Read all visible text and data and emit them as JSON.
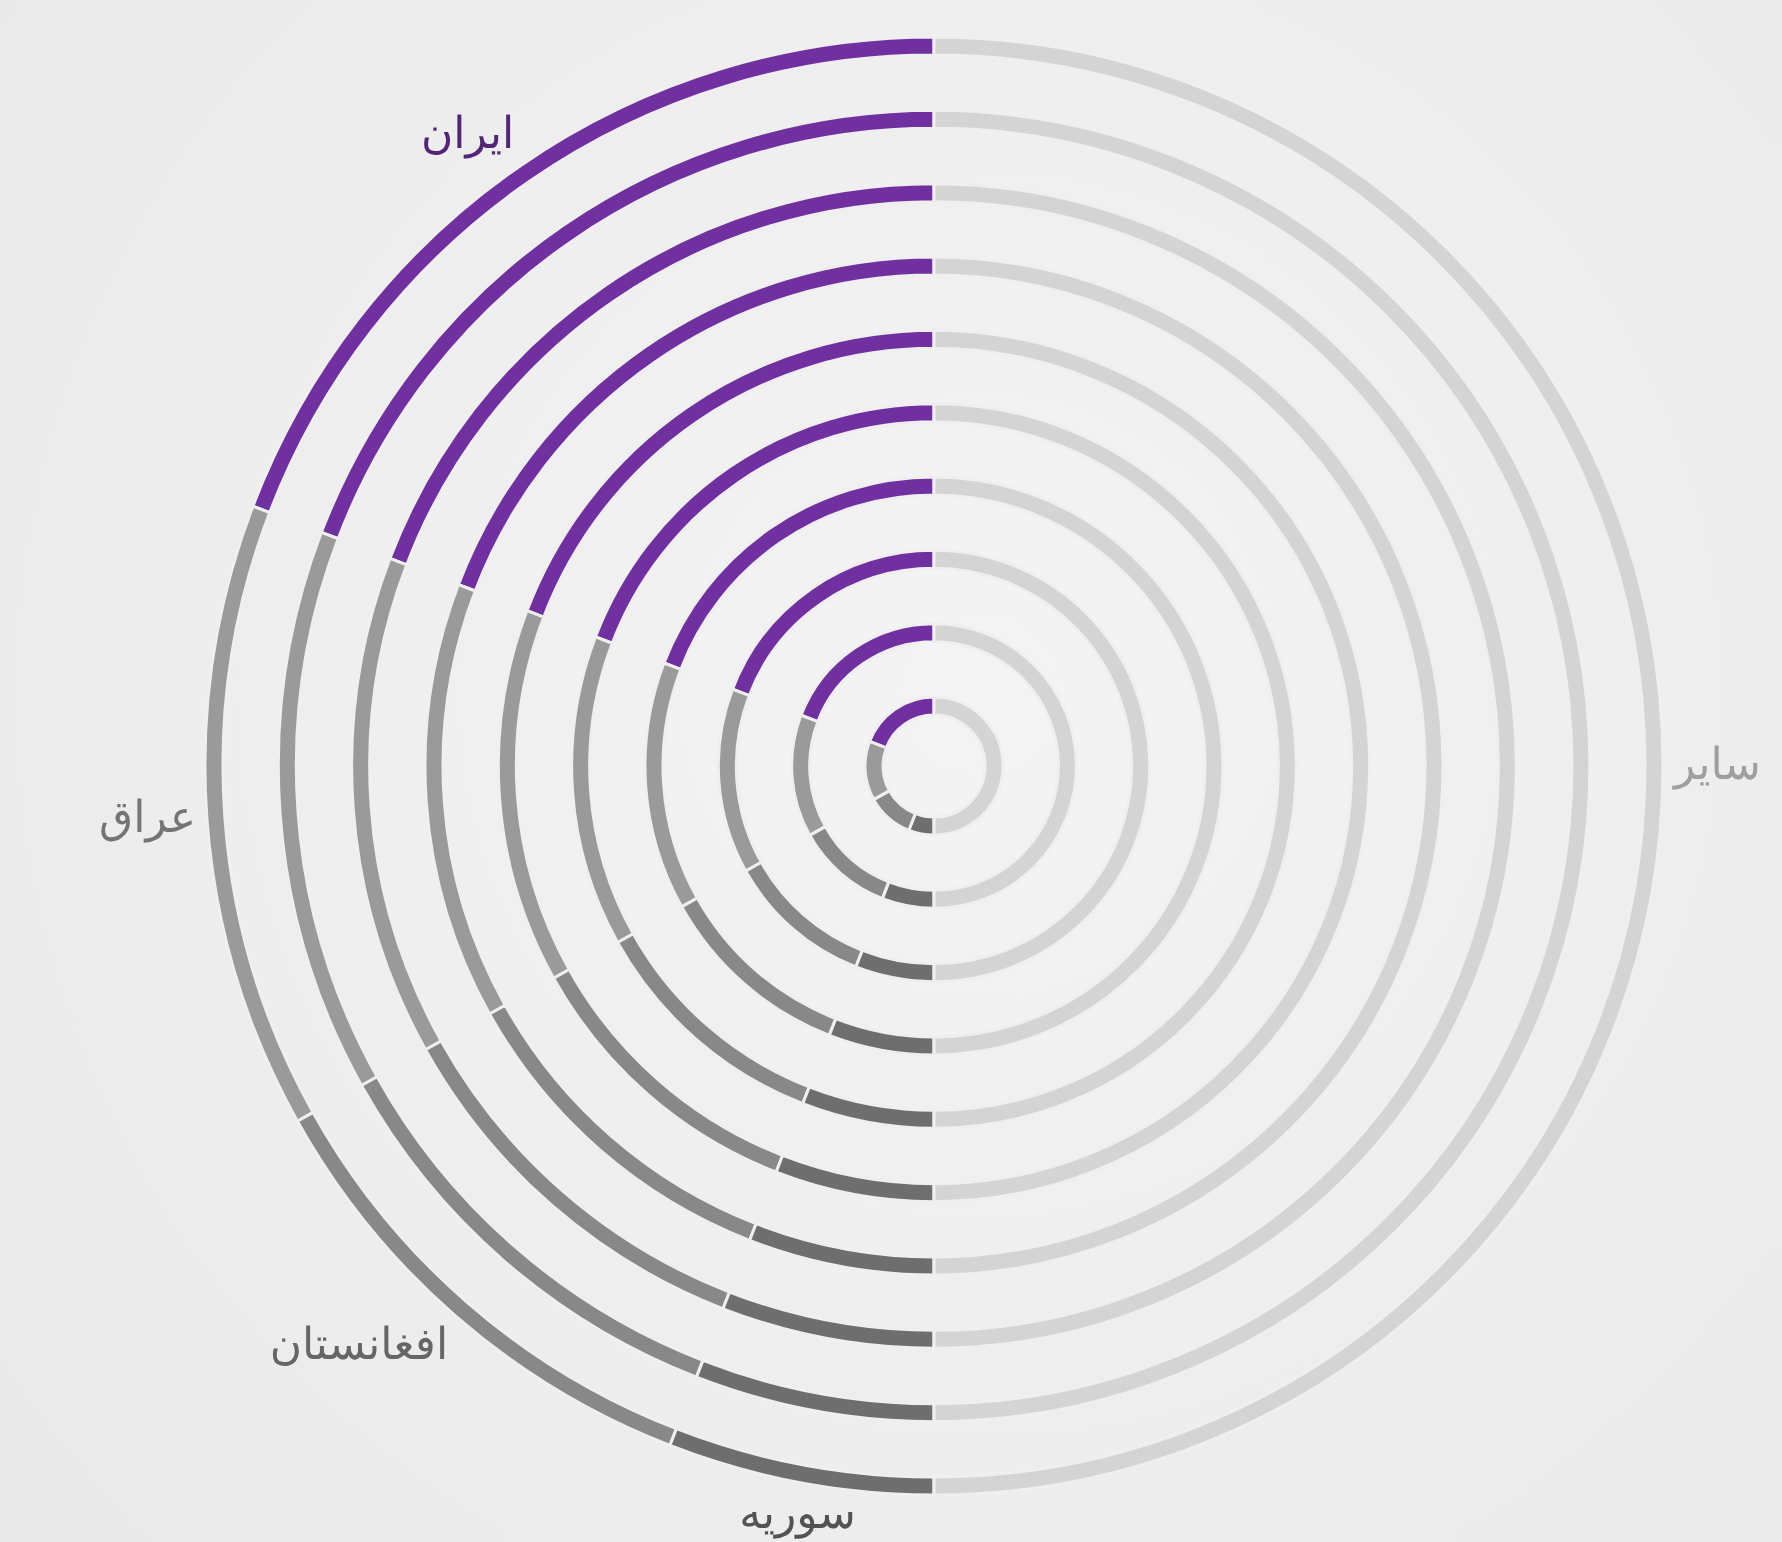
{
  "chart_data": {
    "type": "donut",
    "categories": [
      "ایران",
      "عراق",
      "افغانستان",
      "سوریه",
      "سایر"
    ],
    "colors": [
      "#7030a0",
      "#9a9a9a",
      "#888888",
      "#6e6e6e",
      "#d4d4d4"
    ],
    "series": [
      {
        "values": [
          19.2,
          13.9,
          11,
          5.9,
          50
        ]
      },
      {
        "values": [
          19.2,
          13.9,
          11,
          5.9,
          50
        ]
      },
      {
        "values": [
          19.2,
          13.9,
          11,
          5.9,
          50
        ]
      },
      {
        "values": [
          19.2,
          13.9,
          11,
          5.9,
          50
        ]
      },
      {
        "values": [
          19.2,
          13.9,
          11,
          5.9,
          50
        ]
      },
      {
        "values": [
          19.2,
          13.9,
          11,
          5.9,
          50
        ]
      },
      {
        "values": [
          19.2,
          13.9,
          11,
          5.9,
          50
        ]
      },
      {
        "values": [
          19.2,
          13.9,
          11,
          5.9,
          50
        ]
      },
      {
        "values": [
          19.2,
          13.9,
          11,
          5.9,
          50
        ]
      },
      {
        "values": [
          19.2,
          13.9,
          11,
          5.9,
          50
        ]
      }
    ],
    "legend": false
  }
}
